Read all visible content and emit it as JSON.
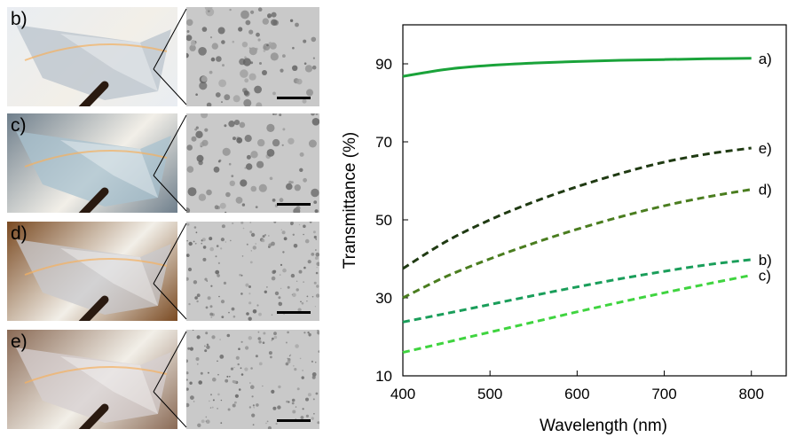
{
  "panels": [
    {
      "label": "b)",
      "photo_bg": "#e9edf2",
      "film": "#b9c3cc"
    },
    {
      "label": "c)",
      "photo_bg": "#6f7f8c",
      "film": "#a8c1cf"
    },
    {
      "label": "d)",
      "photo_bg": "#7a4a22",
      "film": "#c8c8cc"
    },
    {
      "label": "e)",
      "photo_bg": "#8a6a55",
      "film": "#d6cfd0"
    }
  ],
  "chart_data": {
    "type": "line",
    "title": "",
    "xlabel": "Wavelength (nm)",
    "ylabel": "Transmittance (%)",
    "xlim": [
      400,
      840
    ],
    "ylim": [
      10,
      100
    ],
    "xticks": [
      "400",
      "500",
      "600",
      "700",
      "800"
    ],
    "yticks": [
      "10",
      "30",
      "50",
      "70",
      "90"
    ],
    "grid": false,
    "series": [
      {
        "name": "a)",
        "style": "solid",
        "color": "#1aa33a",
        "x": [
          400,
          450,
          500,
          550,
          600,
          650,
          700,
          750,
          800
        ],
        "y": [
          86.8,
          88.6,
          89.6,
          90.2,
          90.6,
          90.9,
          91.1,
          91.3,
          91.4
        ]
      },
      {
        "name": "e)",
        "style": "dashed",
        "color": "#1f3a12",
        "x": [
          400,
          450,
          500,
          550,
          600,
          650,
          700,
          750,
          800
        ],
        "y": [
          37.5,
          44.5,
          50.0,
          54.6,
          58.5,
          61.9,
          64.8,
          66.9,
          68.4
        ]
      },
      {
        "name": "d)",
        "style": "dashed",
        "color": "#4a7d1f",
        "x": [
          400,
          450,
          500,
          550,
          600,
          650,
          700,
          750,
          800
        ],
        "y": [
          30.0,
          35.5,
          40.0,
          44.0,
          47.6,
          50.8,
          53.6,
          55.9,
          57.8
        ]
      },
      {
        "name": "b)",
        "style": "dashed",
        "color": "#1a9e5a",
        "x": [
          400,
          450,
          500,
          550,
          600,
          650,
          700,
          750,
          800
        ],
        "y": [
          23.8,
          26.0,
          28.3,
          30.6,
          32.8,
          34.9,
          36.8,
          38.5,
          39.8
        ]
      },
      {
        "name": "c)",
        "style": "dashed",
        "color": "#3fd43f",
        "x": [
          400,
          450,
          500,
          550,
          600,
          650,
          700,
          750,
          800
        ],
        "y": [
          16.0,
          18.6,
          21.2,
          23.8,
          26.4,
          28.9,
          31.3,
          33.6,
          35.8
        ]
      }
    ]
  }
}
